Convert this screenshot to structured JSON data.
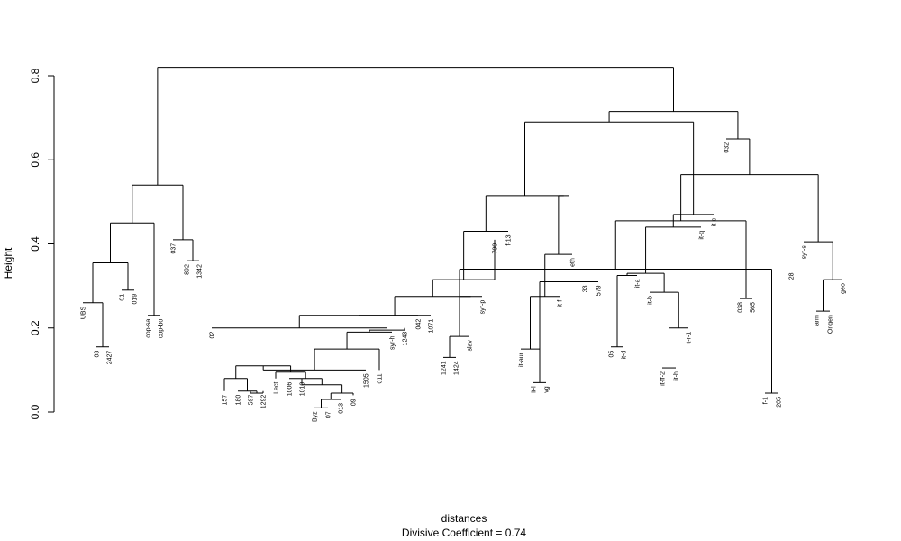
{
  "chart_data": {
    "type": "dendrogram",
    "title": "",
    "ylabel": "Height",
    "xlabel": "distances",
    "subtitle": "Divisive Coefficient =  0.74",
    "ylim": [
      0,
      0.8
    ],
    "yticks": [
      "0.0",
      "0.2",
      "0.4",
      "0.6",
      "0.8"
    ],
    "grid": false,
    "leaves": [
      {
        "label": "UBS",
        "height": 0.26
      },
      {
        "label": "03",
        "height": 0.155
      },
      {
        "label": "2427",
        "height": 0.155
      },
      {
        "label": "01",
        "height": 0.29
      },
      {
        "label": "019",
        "height": 0.29
      },
      {
        "label": "cop-sa",
        "height": 0.23
      },
      {
        "label": "cop-bo",
        "height": 0.23
      },
      {
        "label": "037",
        "height": 0.41
      },
      {
        "label": "892",
        "height": 0.36
      },
      {
        "label": "1342",
        "height": 0.36
      },
      {
        "label": "02",
        "height": 0.2
      },
      {
        "label": "157",
        "height": 0.05
      },
      {
        "label": "180",
        "height": 0.05
      },
      {
        "label": "597",
        "height": 0.05
      },
      {
        "label": "1292",
        "height": 0.05
      },
      {
        "label": "Lect",
        "height": 0.08
      },
      {
        "label": "1006",
        "height": 0.08
      },
      {
        "label": "1010",
        "height": 0.08
      },
      {
        "label": "Byz",
        "height": 0.01
      },
      {
        "label": "07",
        "height": 0.01
      },
      {
        "label": "013",
        "height": 0.03
      },
      {
        "label": "09",
        "height": 0.04
      },
      {
        "label": "1505",
        "height": 0.1
      },
      {
        "label": "011",
        "height": 0.1
      },
      {
        "label": "syr-h",
        "height": 0.19
      },
      {
        "label": "1243",
        "height": 0.2
      },
      {
        "label": "042",
        "height": 0.23
      },
      {
        "label": "1071",
        "height": 0.23
      },
      {
        "label": "1241",
        "height": 0.13
      },
      {
        "label": "1424",
        "height": 0.13
      },
      {
        "label": "slav",
        "height": 0.18
      },
      {
        "label": "syr-p",
        "height": 0.275
      },
      {
        "label": "700",
        "height": 0.41
      },
      {
        "label": "f-13",
        "height": 0.43
      },
      {
        "label": "it-aur",
        "height": 0.15
      },
      {
        "label": "it-l",
        "height": 0.07
      },
      {
        "label": "vg",
        "height": 0.07
      },
      {
        "label": "it-f",
        "height": 0.275
      },
      {
        "label": "eth",
        "height": 0.375
      },
      {
        "label": "33",
        "height": 0.31
      },
      {
        "label": "579",
        "height": 0.31
      },
      {
        "label": "05",
        "height": 0.155
      },
      {
        "label": "it-d",
        "height": 0.155
      },
      {
        "label": "it-a",
        "height": 0.325
      },
      {
        "label": "it-b",
        "height": 0.285
      },
      {
        "label": "it-ff-2",
        "height": 0.105
      },
      {
        "label": "it-h",
        "height": 0.105
      },
      {
        "label": "it-r-1",
        "height": 0.2
      },
      {
        "label": "it-q",
        "height": 0.44
      },
      {
        "label": "it-c",
        "height": 0.47
      },
      {
        "label": "032",
        "height": 0.65
      },
      {
        "label": "038",
        "height": 0.27
      },
      {
        "label": "565",
        "height": 0.27
      },
      {
        "label": "f-1",
        "height": 0.045
      },
      {
        "label": "205",
        "height": 0.045
      },
      {
        "label": "28",
        "height": 0.34
      },
      {
        "label": "syr-s",
        "height": 0.405
      },
      {
        "label": "arm",
        "height": 0.24
      },
      {
        "label": "Origen",
        "height": 0.24
      },
      {
        "label": "geo",
        "height": 0.315
      }
    ],
    "merges": [
      {
        "left": "03",
        "right": "2427",
        "height": 0.155
      },
      {
        "left": "UBS",
        "right": 1,
        "height": 0.26
      },
      {
        "left": "01",
        "right": "019",
        "height": 0.29
      },
      {
        "left": 2,
        "right": 3,
        "height": 0.355
      },
      {
        "left": "cop-sa",
        "right": "cop-bo",
        "height": 0.23
      },
      {
        "left": 4,
        "right": 5,
        "height": 0.45
      },
      {
        "left": "892",
        "right": "1342",
        "height": 0.36
      },
      {
        "left": "037",
        "right": 7,
        "height": 0.41
      },
      {
        "left": 6,
        "right": 8,
        "height": 0.54
      },
      {
        "left": "597",
        "right": "1292",
        "height": 0.045
      },
      {
        "left": "180",
        "right": 10,
        "height": 0.05
      },
      {
        "left": "157",
        "right": 11,
        "height": 0.08
      },
      {
        "left": "Byz",
        "right": "07",
        "height": 0.01
      },
      {
        "left": 13,
        "right": "013",
        "height": 0.03
      },
      {
        "left": 14,
        "right": "09",
        "height": 0.045
      },
      {
        "left": "1010",
        "right": 15,
        "height": 0.065
      },
      {
        "left": "1006",
        "right": 16,
        "height": 0.08
      },
      {
        "left": "Lect",
        "right": 17,
        "height": 0.095
      },
      {
        "left": 12,
        "right": 18,
        "height": 0.11
      },
      {
        "left": 19,
        "right": "1505",
        "height": 0.1
      },
      {
        "left": 20,
        "right": "011",
        "height": 0.15
      },
      {
        "left": 21,
        "right": "syr-h",
        "height": 0.19
      },
      {
        "left": 22,
        "right": "1243",
        "height": 0.195
      },
      {
        "left": "02",
        "right": 23,
        "height": 0.2
      },
      {
        "left": 24,
        "right": "042",
        "height": 0.23
      },
      {
        "left": 25,
        "right": "1071",
        "height": 0.23
      },
      {
        "left": "1241",
        "right": "1424",
        "height": 0.13
      },
      {
        "left": 27,
        "right": "slav",
        "height": 0.18
      },
      {
        "left": 28,
        "right": "syr-p",
        "height": 0.275
      },
      {
        "left": 26,
        "right": 29,
        "height": 0.275
      },
      {
        "left": 30,
        "right": "700",
        "height": 0.315
      },
      {
        "left": 31,
        "right": "f-13",
        "height": 0.43
      },
      {
        "left": "it-l",
        "right": "vg",
        "height": 0.07
      },
      {
        "left": "it-aur",
        "right": 33,
        "height": 0.15
      },
      {
        "left": 34,
        "right": "it-f",
        "height": 0.275
      },
      {
        "left": 35,
        "right": "eth",
        "height": 0.375
      },
      {
        "left": "33",
        "right": "579",
        "height": 0.31
      },
      {
        "left": 36,
        "right": 37,
        "height": 0.515
      },
      {
        "left": 32,
        "right": 38,
        "height": 0.515
      },
      {
        "left": "05",
        "right": "it-d",
        "height": 0.155
      },
      {
        "left": 40,
        "right": "it-a",
        "height": 0.325
      },
      {
        "left": "it-ff-2",
        "right": "it-h",
        "height": 0.105
      },
      {
        "left": 42,
        "right": "it-r-1",
        "height": 0.2
      },
      {
        "left": "it-b",
        "right": 43,
        "height": 0.285
      },
      {
        "left": 41,
        "right": 44,
        "height": 0.33
      },
      {
        "left": 45,
        "right": "it-q",
        "height": 0.44
      },
      {
        "left": 46,
        "right": "it-c",
        "height": 0.47
      },
      {
        "left": 39,
        "right": 47,
        "height": 0.69
      },
      {
        "left": "038",
        "right": "565",
        "height": 0.27
      },
      {
        "left": "f-1",
        "right": "205",
        "height": 0.045
      },
      {
        "left": 50,
        "right": "28",
        "height": 0.34
      },
      {
        "left": 49,
        "right": 51,
        "height": 0.455
      },
      {
        "left": "arm",
        "right": "Origen",
        "height": 0.24
      },
      {
        "left": 53,
        "right": "geo",
        "height": 0.315
      },
      {
        "left": "syr-s",
        "right": 54,
        "height": 0.405
      },
      {
        "left": 52,
        "right": 55,
        "height": 0.565
      },
      {
        "left": "032",
        "right": 56,
        "height": 0.65
      },
      {
        "left": 48,
        "right": 57,
        "height": 0.715
      },
      {
        "left": 9,
        "right": 58,
        "height": 0.82
      }
    ]
  }
}
